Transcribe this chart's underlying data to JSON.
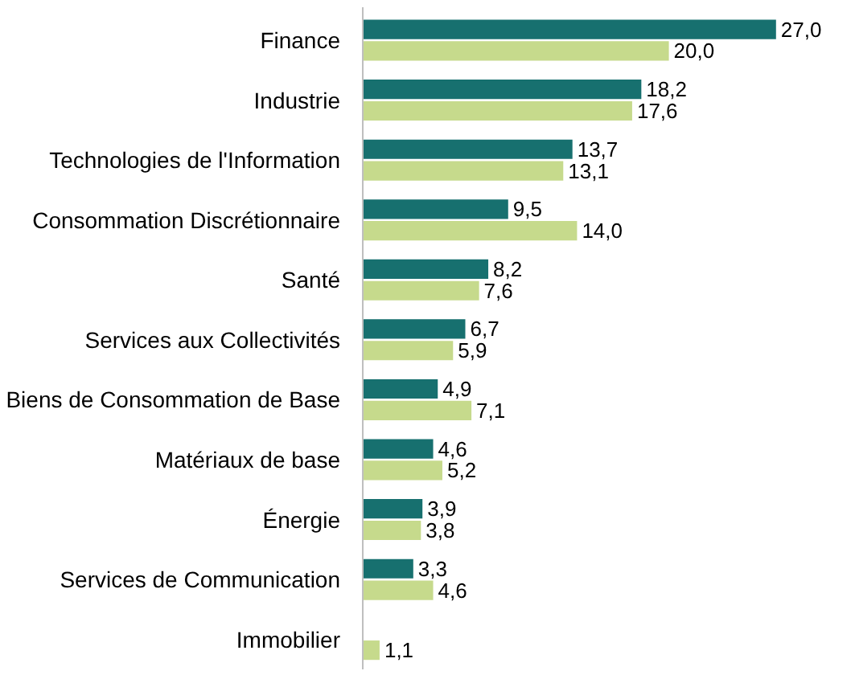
{
  "chart_data": {
    "type": "bar",
    "orientation": "horizontal",
    "categories": [
      "Finance",
      "Industrie",
      "Technologies de l'Information",
      "Consommation Discrétionnaire",
      "Santé",
      "Services aux Collectivités",
      "Biens de Consommation de Base",
      "Matériaux de base",
      "Énergie",
      "Services de Communication",
      "Immobilier"
    ],
    "series": [
      {
        "color": "#17706f",
        "values": [
          27.0,
          18.2,
          13.7,
          9.5,
          8.2,
          6.7,
          4.9,
          4.6,
          3.9,
          3.3,
          null
        ],
        "value_labels": [
          "27,0",
          "18,2",
          "13,7",
          "9,5",
          "8,2",
          "6,7",
          "4,9",
          "4,6",
          "3,9",
          "3,3",
          null
        ]
      },
      {
        "color": "#c6da8c",
        "values": [
          20.0,
          17.6,
          13.1,
          14.0,
          7.6,
          5.9,
          7.1,
          5.2,
          3.8,
          4.6,
          1.1
        ],
        "value_labels": [
          "20,0",
          "17,6",
          "13,1",
          "14,0",
          "7,6",
          "5,9",
          "7,1",
          "5,2",
          "3,8",
          "4,6",
          "1,1"
        ]
      }
    ]
  }
}
